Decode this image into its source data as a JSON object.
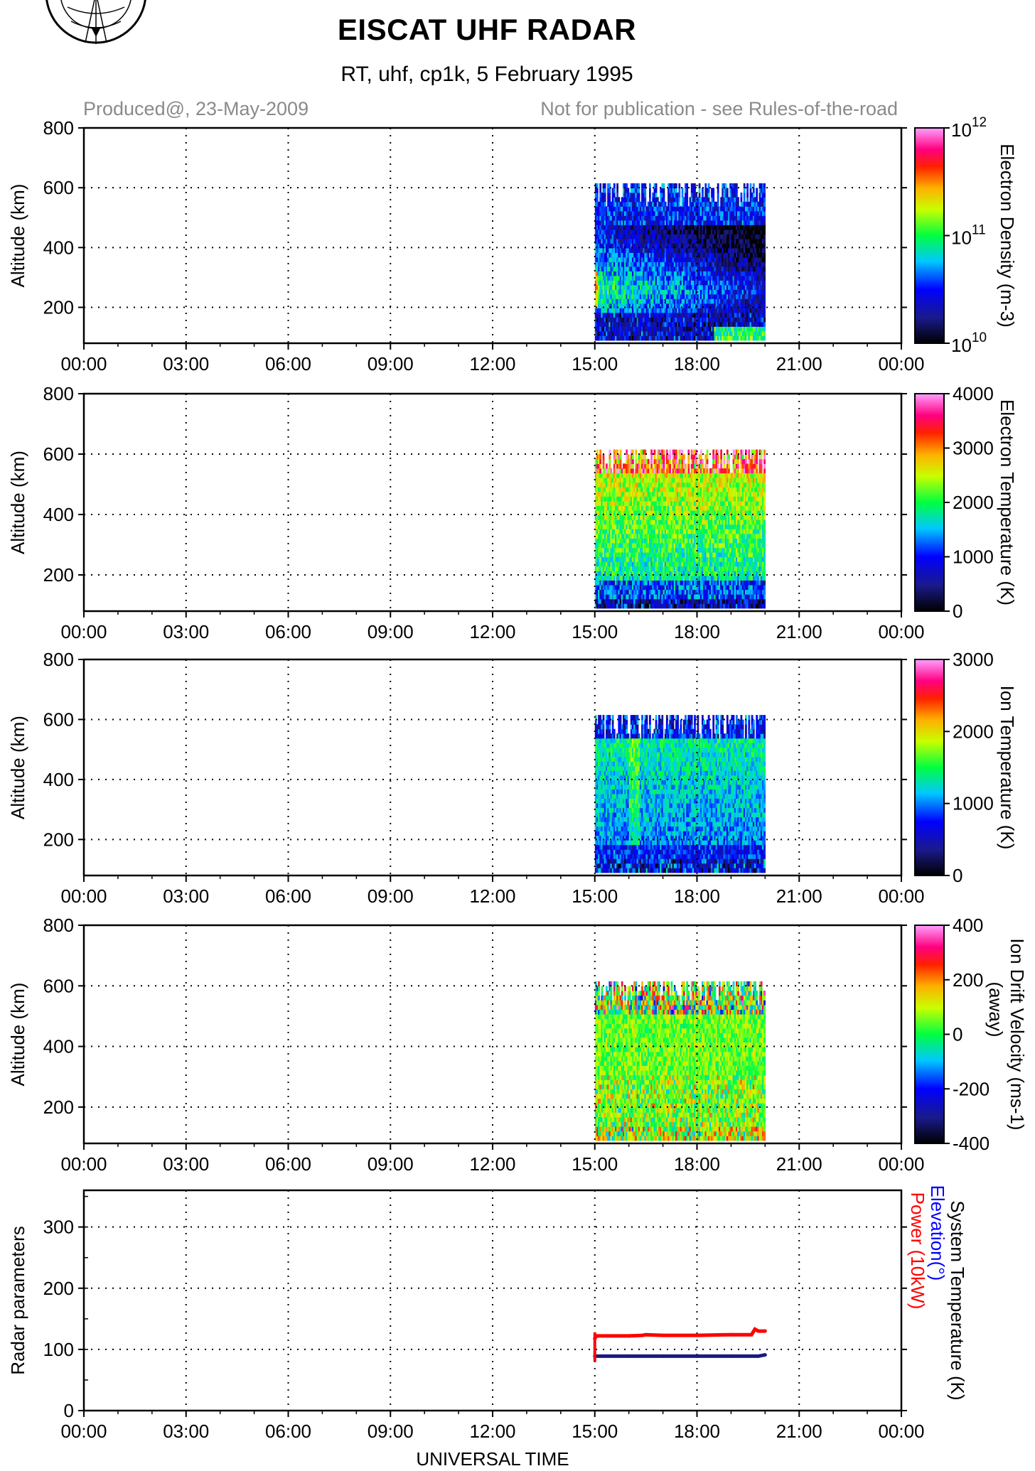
{
  "header": {
    "title": "EISCAT UHF RADAR",
    "subtitle": "RT, uhf, cp1k, 5 February 1995",
    "produced": "Produced@, 23-May-2009",
    "notice": "Not for publication - see Rules-of-the-road"
  },
  "xlabel": "UNIVERSAL TIME",
  "x_ticks": [
    "00:00",
    "03:00",
    "06:00",
    "09:00",
    "12:00",
    "15:00",
    "18:00",
    "21:00",
    "00:00"
  ],
  "chart_data": [
    {
      "type": "heatmap",
      "ylabel": "Altitude (km)",
      "y_ticks": [
        200,
        400,
        600,
        800
      ],
      "ylim": [
        80,
        800
      ],
      "xlim_hours": [
        0,
        24
      ],
      "data_extent": {
        "t_start": "15:00",
        "t_end": "20:00",
        "alt_min": 90,
        "alt_max": 615
      },
      "colorbar_label": "Electron Density (m-3)",
      "colorbar_scale": "log",
      "colorbar_range": [
        10000000000.0,
        1000000000000.0
      ],
      "colorbar_ticks": [
        "10^10",
        "10^11",
        "10^12"
      ],
      "grid": "dotted"
    },
    {
      "type": "heatmap",
      "ylabel": "Altitude (km)",
      "y_ticks": [
        200,
        400,
        600,
        800
      ],
      "ylim": [
        80,
        800
      ],
      "xlim_hours": [
        0,
        24
      ],
      "data_extent": {
        "t_start": "15:00",
        "t_end": "20:00",
        "alt_min": 90,
        "alt_max": 615
      },
      "colorbar_label": "Electron Temperature (K)",
      "colorbar_range": [
        0,
        4000
      ],
      "colorbar_ticks": [
        "0",
        "1000",
        "2000",
        "3000",
        "4000"
      ],
      "grid": "dotted"
    },
    {
      "type": "heatmap",
      "ylabel": "Altitude (km)",
      "y_ticks": [
        200,
        400,
        600,
        800
      ],
      "ylim": [
        80,
        800
      ],
      "xlim_hours": [
        0,
        24
      ],
      "data_extent": {
        "t_start": "15:00",
        "t_end": "20:00",
        "alt_min": 90,
        "alt_max": 615
      },
      "colorbar_label": "Ion Temperature (K)",
      "colorbar_range": [
        0,
        3000
      ],
      "colorbar_ticks": [
        "0",
        "1000",
        "2000",
        "3000"
      ],
      "grid": "dotted"
    },
    {
      "type": "heatmap",
      "ylabel": "Altitude (km)",
      "y_ticks": [
        200,
        400,
        600,
        800
      ],
      "ylim": [
        80,
        800
      ],
      "xlim_hours": [
        0,
        24
      ],
      "data_extent": {
        "t_start": "15:00",
        "t_end": "20:00",
        "alt_min": 90,
        "alt_max": 615
      },
      "colorbar_label_line1": "Ion Drift Velocity (ms-1)",
      "colorbar_label_line2": "(away)",
      "colorbar_range": [
        -400,
        400
      ],
      "colorbar_ticks": [
        "-400",
        "-200",
        "0",
        "200",
        "400"
      ],
      "grid": "dotted"
    },
    {
      "type": "line",
      "ylabel": "Radar parameters",
      "y_ticks": [
        0,
        100,
        200,
        300
      ],
      "ylim": [
        0,
        360
      ],
      "xlim_hours": [
        0,
        24
      ],
      "legend": [
        "System Temperature (K)",
        "Elevation(°)",
        "Power (10kW)"
      ],
      "legend_colors": [
        "#000000",
        "#0000ff",
        "#ff0000"
      ],
      "series": [
        {
          "name": "Power (10kW)",
          "color": "#ff0000",
          "x_hours": [
            15.0,
            15.05,
            15.1,
            16.0,
            16.4,
            16.5,
            17.0,
            18.0,
            19.0,
            19.6,
            19.7,
            19.8,
            20.0
          ],
          "values": [
            118,
            122,
            122,
            122,
            123,
            124,
            123,
            123,
            124,
            124,
            133,
            130,
            130
          ]
        },
        {
          "name": "Elevation(°)",
          "color": "#1a1a80",
          "x_hours": [
            15.0,
            16.0,
            17.0,
            18.0,
            19.0,
            19.8,
            20.0
          ],
          "values": [
            89,
            89,
            89,
            89,
            89,
            89,
            91
          ]
        }
      ],
      "grid": "dotted"
    }
  ]
}
